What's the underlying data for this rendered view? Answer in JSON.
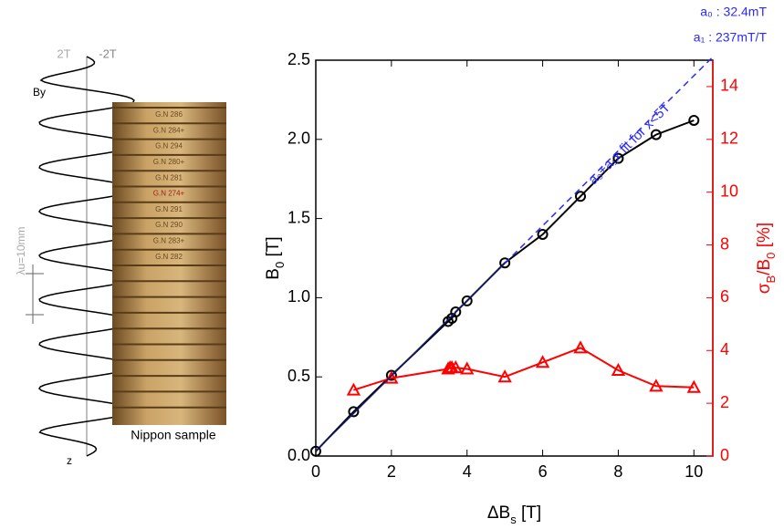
{
  "chart_data": {
    "type": "line",
    "xlabel": [
      {
        "text": "ΔB"
      },
      {
        "text": "s",
        "sub": true
      },
      {
        "text": " [T]"
      }
    ],
    "ylabel": [
      {
        "text": "B"
      },
      {
        "text": "0",
        "sub": true
      },
      {
        "text": " [T]"
      }
    ],
    "y2label": [
      {
        "text": "σ"
      },
      {
        "text": "B",
        "sub": true
      },
      {
        "text": "/B"
      },
      {
        "text": "0",
        "sub": true
      },
      {
        "text": " [%]"
      }
    ],
    "xlim": [
      0,
      10.5
    ],
    "xticks": [
      0,
      2,
      4,
      6,
      8,
      10
    ],
    "ylim": [
      0,
      2.5
    ],
    "yticks": [
      {
        "value": 0,
        "label": "0.0"
      },
      {
        "value": 0.5,
        "label": "0.5"
      },
      {
        "value": 1,
        "label": "1.0"
      },
      {
        "value": 1.5,
        "label": "1.5"
      },
      {
        "value": 2,
        "label": "2.0"
      },
      {
        "value": 2.5,
        "label": "2.5"
      }
    ],
    "y2lim": [
      0,
      15
    ],
    "y2ticks": [
      0,
      2,
      4,
      6,
      8,
      10,
      12,
      14
    ],
    "series": [
      {
        "color": "#000000",
        "marker": "circle",
        "x": [
          0,
          1,
          2,
          3.5,
          3.6,
          3.7,
          4,
          5,
          6,
          7,
          8,
          9,
          10
        ],
        "values": [
          0.03,
          0.28,
          0.51,
          0.85,
          0.87,
          0.91,
          0.98,
          1.22,
          1.4,
          1.64,
          1.88,
          2.03,
          2.12
        ]
      },
      {
        "color": "#ff0000",
        "marker": "triangle",
        "axis": "y2",
        "x": [
          1,
          2,
          3.5,
          3.55,
          3.6,
          3.7,
          4,
          5,
          6,
          7,
          8,
          9,
          10
        ],
        "values": [
          2.5,
          2.95,
          3.3,
          3.35,
          3.35,
          3.35,
          3.3,
          3.0,
          3.55,
          4.1,
          3.25,
          2.65,
          2.6
        ]
      },
      {
        "color": "#1a1a70",
        "marker": "none",
        "x": [
          0,
          5
        ],
        "values": [
          0.0324,
          1.2174
        ]
      },
      {
        "color": "#2a2aff",
        "marker": "none",
        "dash": true,
        "x": [
          5,
          10.5
        ],
        "values": [
          1.2174,
          2.5209
        ]
      }
    ],
    "annotations": [
      "a₀ : 32.4mT",
      "a₁ : 237mT/T",
      "a₀+a₁x  fit for x<5T"
    ],
    "illustration": {
      "field_max": "2T",
      "field_min": "-2T",
      "field_label": "By",
      "period": "λu=10mm",
      "axis": "z",
      "caption": "Nippon sample",
      "disc_labels": [
        "G.N 286",
        "G.N 284+",
        "G.N 294",
        "G.N 280+",
        "G.N 281",
        "G.N 274+",
        "G.N 291",
        "G.N 290",
        "G.N 283+",
        "G.N 282"
      ]
    }
  }
}
